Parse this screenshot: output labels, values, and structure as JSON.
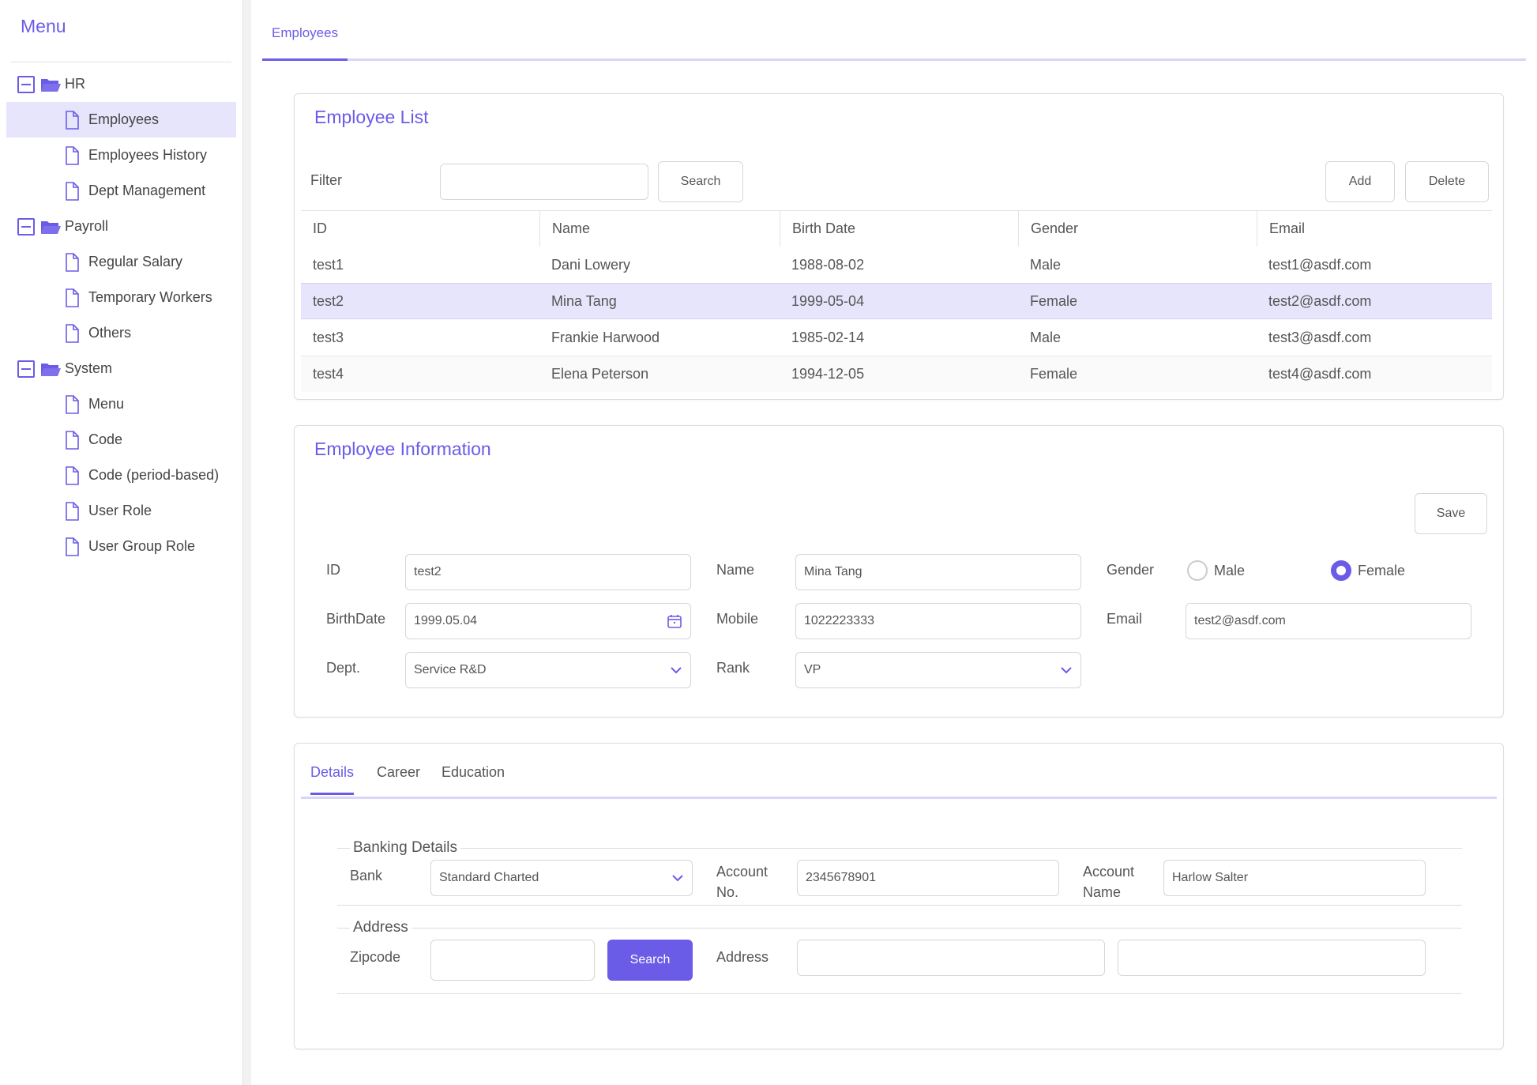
{
  "sidebar": {
    "title": "Menu",
    "groups": [
      {
        "label": "HR",
        "items": [
          "Employees",
          "Employees History",
          "Dept Management"
        ]
      },
      {
        "label": "Payroll",
        "items": [
          "Regular Salary",
          "Temporary Workers",
          "Others"
        ]
      },
      {
        "label": "System",
        "items": [
          "Menu",
          "Code",
          "Code (period-based)",
          "User Role",
          "User Group Role"
        ]
      }
    ]
  },
  "top_tab": "Employees",
  "list": {
    "title": "Employee List",
    "filter_label": "Filter",
    "filter_value": "",
    "search_label": "Search",
    "add_label": "Add",
    "delete_label": "Delete",
    "columns": [
      "ID",
      "Name",
      "Birth Date",
      "Gender",
      "Email"
    ],
    "rows": [
      [
        "test1",
        "Dani Lowery",
        "1988-08-02",
        "Male",
        "test1@asdf.com"
      ],
      [
        "test2",
        "Mina Tang",
        "1999-05-04",
        "Female",
        "test2@asdf.com"
      ],
      [
        "test3",
        "Frankie Harwood",
        "1985-02-14",
        "Male",
        "test3@asdf.com"
      ],
      [
        "test4",
        "Elena Peterson",
        "1994-12-05",
        "Female",
        "test4@asdf.com"
      ]
    ]
  },
  "info": {
    "title": "Employee Information",
    "save_label": "Save",
    "id_label": "ID",
    "id_value": "test2",
    "name_label": "Name",
    "name_value": "Mina Tang",
    "gender_label": "Gender",
    "gender_male": "Male",
    "gender_female": "Female",
    "birth_label": "BirthDate",
    "birth_value": "1999.05.04",
    "mobile_label": "Mobile",
    "mobile_value": "1022223333",
    "email_label": "Email",
    "email_value": "test2@asdf.com",
    "dept_label": "Dept.",
    "dept_value": "Service R&D",
    "rank_label": "Rank",
    "rank_value": "VP"
  },
  "details": {
    "tabs": [
      "Details",
      "Career",
      "Education"
    ],
    "banking": {
      "legend": "Banking Details",
      "bank_label": "Bank",
      "bank_value": "Standard Charted",
      "account_no_label_1": "Account",
      "account_no_label_2": "No.",
      "account_no_value": "2345678901",
      "account_name_label_1": "Account",
      "account_name_label_2": "Name",
      "account_name_value": "Harlow Salter"
    },
    "address": {
      "legend": "Address",
      "zipcode_label": "Zipcode",
      "zipcode_value": "",
      "search_label": "Search",
      "address_label": "Address",
      "address1_value": "",
      "address2_value": ""
    }
  },
  "colors": {
    "accent": "#6b5ce7",
    "accent_light": "#e7e5fb"
  }
}
